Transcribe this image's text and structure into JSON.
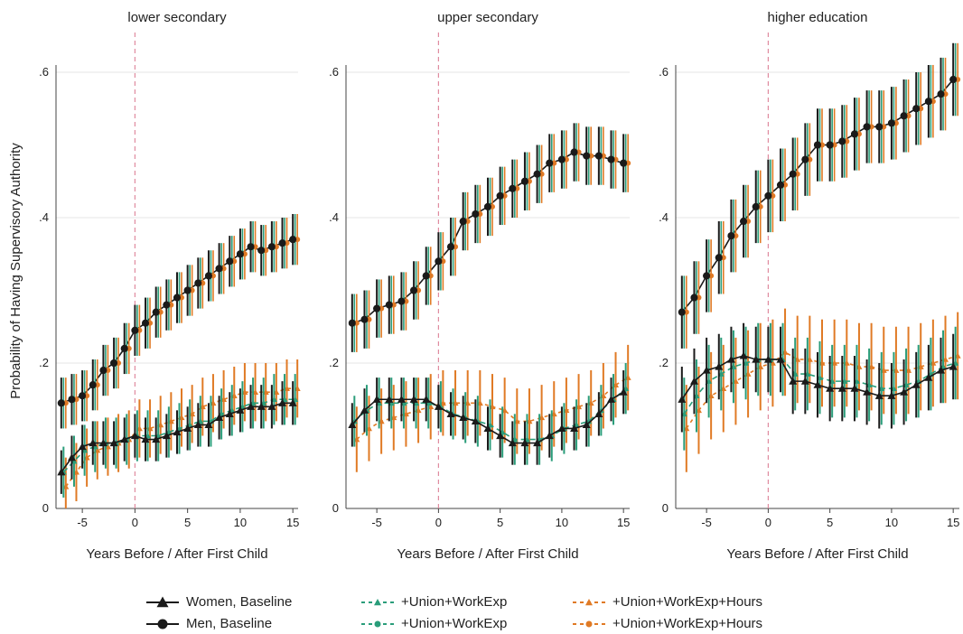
{
  "colors": {
    "women_base": "#1a1a1a",
    "men_base": "#1a1a1a",
    "union": "#2a9d7a",
    "hours": "#e07a25",
    "vline": "#e08ca0",
    "grid": "#e6e6e6"
  },
  "figure": {
    "ylabel": "Probability of Having Supervisory Authority",
    "xlabel": "Years Before / After First Child",
    "xticks": [
      -5,
      0,
      5,
      10,
      15
    ],
    "xtick_labels": [
      "-5",
      "0",
      "5",
      "10",
      "15"
    ],
    "yticks": [
      0,
      0.2,
      0.4,
      0.6
    ],
    "ytick_labels": [
      "0",
      ".2",
      ".4",
      ".6"
    ]
  },
  "legend": [
    {
      "label": "Women, Baseline",
      "marker": "triangle",
      "color": "#1a1a1a",
      "dash": false
    },
    {
      "label": "Men, Baseline",
      "marker": "circle",
      "color": "#1a1a1a",
      "dash": false
    },
    {
      "label": "+Union+WorkExp",
      "marker": "triangle",
      "color": "#2a9d7a",
      "dash": true
    },
    {
      "label": "+Union+WorkExp",
      "marker": "circle",
      "color": "#2a9d7a",
      "dash": true
    },
    {
      "label": "+Union+WorkExp+Hours",
      "marker": "triangle",
      "color": "#e07a25",
      "dash": true
    },
    {
      "label": "+Union+WorkExp+Hours",
      "marker": "circle",
      "color": "#e07a25",
      "dash": true
    }
  ],
  "chart_data": [
    {
      "type": "line",
      "title": "lower secondary",
      "xlabel": "Years Before / After First Child",
      "ylabel": "Probability of Having Supervisory Authority",
      "xlim": [
        -7.5,
        15.5
      ],
      "ylim": [
        0,
        0.6
      ],
      "x": [
        -7,
        -6,
        -5,
        -4,
        -3,
        -2,
        -1,
        0,
        1,
        2,
        3,
        4,
        5,
        6,
        7,
        8,
        9,
        10,
        11,
        12,
        13,
        14,
        15
      ],
      "series": [
        {
          "name": "Men, Baseline",
          "ci": 0.035,
          "values": [
            0.145,
            0.15,
            0.155,
            0.17,
            0.19,
            0.2,
            0.22,
            0.245,
            0.255,
            0.27,
            0.28,
            0.29,
            0.3,
            0.31,
            0.32,
            0.33,
            0.34,
            0.35,
            0.36,
            0.355,
            0.36,
            0.365,
            0.37
          ]
        },
        {
          "name": "Women, Baseline",
          "ci": 0.03,
          "values": [
            0.05,
            0.07,
            0.085,
            0.09,
            0.09,
            0.09,
            0.095,
            0.1,
            0.095,
            0.095,
            0.1,
            0.105,
            0.11,
            0.115,
            0.115,
            0.125,
            0.13,
            0.135,
            0.14,
            0.14,
            0.14,
            0.145,
            0.145
          ]
        },
        {
          "name": "+Union+WorkExp",
          "ci": 0.035,
          "values": [
            0.05,
            0.065,
            0.08,
            0.085,
            0.09,
            0.09,
            0.095,
            0.1,
            0.1,
            0.1,
            0.105,
            0.11,
            0.115,
            0.12,
            0.12,
            0.13,
            0.135,
            0.14,
            0.145,
            0.145,
            0.15,
            0.15,
            0.15
          ]
        },
        {
          "name": "+Union+WorkExp+Hours",
          "ci": 0.04,
          "values": [
            0.03,
            0.05,
            0.07,
            0.08,
            0.085,
            0.09,
            0.095,
            0.11,
            0.11,
            0.115,
            0.12,
            0.125,
            0.13,
            0.14,
            0.145,
            0.15,
            0.155,
            0.16,
            0.16,
            0.16,
            0.16,
            0.165,
            0.165
          ]
        }
      ]
    },
    {
      "type": "line",
      "title": "upper secondary",
      "xlabel": "Years Before / After First Child",
      "ylabel": "",
      "xlim": [
        -7.5,
        15.5
      ],
      "ylim": [
        0,
        0.6
      ],
      "x": [
        -7,
        -6,
        -5,
        -4,
        -3,
        -2,
        -1,
        0,
        1,
        2,
        3,
        4,
        5,
        6,
        7,
        8,
        9,
        10,
        11,
        12,
        13,
        14,
        15
      ],
      "series": [
        {
          "name": "Men, Baseline",
          "ci": 0.04,
          "values": [
            0.255,
            0.26,
            0.275,
            0.28,
            0.285,
            0.3,
            0.32,
            0.34,
            0.36,
            0.395,
            0.405,
            0.415,
            0.43,
            0.44,
            0.45,
            0.46,
            0.475,
            0.48,
            0.49,
            0.485,
            0.485,
            0.48,
            0.475
          ]
        },
        {
          "name": "Women, Baseline",
          "ci": 0.03,
          "values": [
            0.115,
            0.135,
            0.15,
            0.15,
            0.15,
            0.15,
            0.15,
            0.14,
            0.13,
            0.125,
            0.12,
            0.11,
            0.1,
            0.09,
            0.09,
            0.09,
            0.1,
            0.11,
            0.11,
            0.115,
            0.13,
            0.15,
            0.16
          ]
        },
        {
          "name": "+Union+WorkExp",
          "ci": 0.035,
          "values": [
            0.12,
            0.135,
            0.145,
            0.145,
            0.145,
            0.145,
            0.145,
            0.14,
            0.13,
            0.125,
            0.12,
            0.115,
            0.105,
            0.095,
            0.095,
            0.095,
            0.1,
            0.11,
            0.115,
            0.12,
            0.135,
            0.15,
            0.165
          ]
        },
        {
          "name": "+Union+WorkExp+Hours",
          "ci": 0.045,
          "values": [
            0.095,
            0.11,
            0.12,
            0.125,
            0.13,
            0.135,
            0.14,
            0.145,
            0.145,
            0.145,
            0.145,
            0.14,
            0.135,
            0.12,
            0.12,
            0.125,
            0.13,
            0.135,
            0.14,
            0.145,
            0.155,
            0.17,
            0.18
          ]
        }
      ]
    },
    {
      "type": "line",
      "title": "higher education",
      "xlabel": "Years Before / After First Child",
      "ylabel": "",
      "xlim": [
        -7.5,
        15.5
      ],
      "ylim": [
        0,
        0.6
      ],
      "x": [
        -7,
        -6,
        -5,
        -4,
        -3,
        -2,
        -1,
        0,
        1,
        2,
        3,
        4,
        5,
        6,
        7,
        8,
        9,
        10,
        11,
        12,
        13,
        14,
        15
      ],
      "series": [
        {
          "name": "Men, Baseline",
          "ci": 0.05,
          "values": [
            0.27,
            0.29,
            0.32,
            0.345,
            0.375,
            0.395,
            0.415,
            0.43,
            0.445,
            0.46,
            0.48,
            0.5,
            0.5,
            0.505,
            0.515,
            0.525,
            0.525,
            0.53,
            0.54,
            0.55,
            0.56,
            0.57,
            0.59
          ]
        },
        {
          "name": "Women, Baseline",
          "ci": 0.045,
          "values": [
            0.15,
            0.175,
            0.19,
            0.195,
            0.205,
            0.21,
            0.205,
            0.205,
            0.205,
            0.175,
            0.175,
            0.17,
            0.165,
            0.165,
            0.165,
            0.16,
            0.155,
            0.155,
            0.16,
            0.17,
            0.18,
            0.19,
            0.195
          ]
        },
        {
          "name": "+Union+WorkExp",
          "ci": 0.05,
          "values": [
            0.13,
            0.155,
            0.175,
            0.185,
            0.195,
            0.2,
            0.205,
            0.205,
            0.205,
            0.185,
            0.185,
            0.18,
            0.175,
            0.175,
            0.175,
            0.17,
            0.165,
            0.165,
            0.17,
            0.175,
            0.185,
            0.195,
            0.2
          ]
        },
        {
          "name": "+Union+WorkExp+Hours",
          "ci": 0.06,
          "values": [
            0.11,
            0.135,
            0.155,
            0.165,
            0.175,
            0.185,
            0.195,
            0.2,
            0.215,
            0.205,
            0.205,
            0.2,
            0.2,
            0.2,
            0.195,
            0.195,
            0.19,
            0.19,
            0.19,
            0.195,
            0.2,
            0.205,
            0.21
          ]
        }
      ]
    }
  ]
}
